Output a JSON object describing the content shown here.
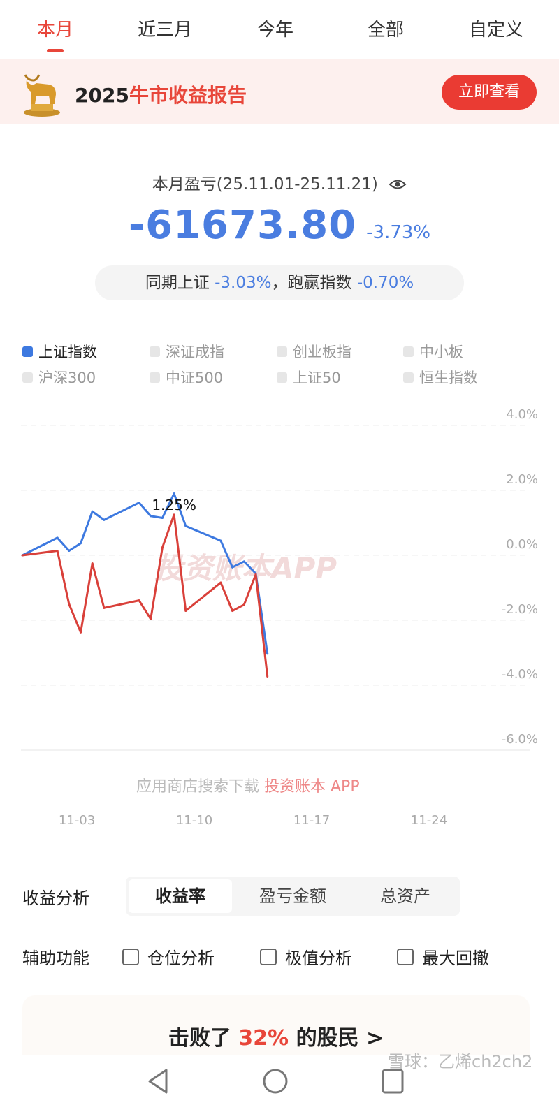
{
  "tabs": [
    {
      "label": "本月",
      "active": true
    },
    {
      "label": "近三月"
    },
    {
      "label": "今年"
    },
    {
      "label": "全部"
    },
    {
      "label": "自定义"
    }
  ],
  "banner": {
    "year": "2025",
    "title": "牛市收益报告",
    "button": "立即查看",
    "icon": "golden-bull-icon"
  },
  "summary": {
    "label": "本月盈亏(25.11.01-25.11.21)",
    "eye_icon": "eye-icon",
    "amount": "-61673.80",
    "percent": "-3.73%",
    "compare_prefix": "同期上证",
    "index_return": "-3.03%",
    "sep": "，跑赢指数",
    "excess": "-0.70%"
  },
  "legend": [
    {
      "label": "上证指数",
      "active": true
    },
    {
      "label": "深证成指"
    },
    {
      "label": "创业板指"
    },
    {
      "label": "中小板"
    },
    {
      "label": "沪深300"
    },
    {
      "label": "中证500"
    },
    {
      "label": "上证50"
    },
    {
      "label": "恒生指数"
    }
  ],
  "colors": {
    "accent": "#e8463a",
    "account": "#d9403a",
    "index": "#3d79e0"
  },
  "watermark": {
    "brand": "投资账本APP",
    "download": "应用商店搜索下载",
    "app": "投资账本 APP"
  },
  "chart_data": {
    "type": "line",
    "ylim": [
      -6,
      4
    ],
    "yticks": [
      "4.0%",
      "2.0%",
      "0.0%",
      "-2.0%",
      "-4.0%",
      "-6.0%"
    ],
    "xticks": [
      "11-03",
      "11-10",
      "11-17",
      "11-24"
    ],
    "grid": true,
    "annotation": "1.25%",
    "x": [
      "10-31",
      "11-03",
      "11-04",
      "11-05",
      "11-06",
      "11-07",
      "11-10",
      "11-11",
      "11-12",
      "11-13",
      "11-14",
      "11-17",
      "11-18",
      "11-19",
      "11-20",
      "11-21"
    ],
    "series": [
      {
        "name": "上证指数",
        "color": "#3d79e0",
        "values": [
          0,
          0.54,
          0.14,
          0.37,
          1.35,
          1.09,
          1.62,
          1.21,
          1.15,
          1.9,
          0.9,
          0.45,
          -0.37,
          -0.19,
          -0.56,
          -3.03
        ]
      },
      {
        "color": "#d9403a",
        "values": [
          0,
          0.14,
          -1.5,
          -2.37,
          -0.25,
          -1.62,
          -1.39,
          -1.96,
          0.24,
          1.25,
          -1.71,
          -0.84,
          -1.71,
          -1.52,
          -0.59,
          -3.73
        ]
      }
    ]
  },
  "analysis": {
    "label": "收益分析",
    "options": [
      "收益率",
      "盈亏金额",
      "总资产"
    ],
    "selected": "收益率"
  },
  "aux": {
    "label": "辅助功能",
    "options": [
      "仓位分析",
      "极值分析",
      "最大回撤"
    ]
  },
  "card": {
    "prefix": "击败了",
    "value": "32%",
    "suffix": "的股民",
    "arrow": ">"
  },
  "footer_watermark": "雪球：乙烯ch2ch2"
}
